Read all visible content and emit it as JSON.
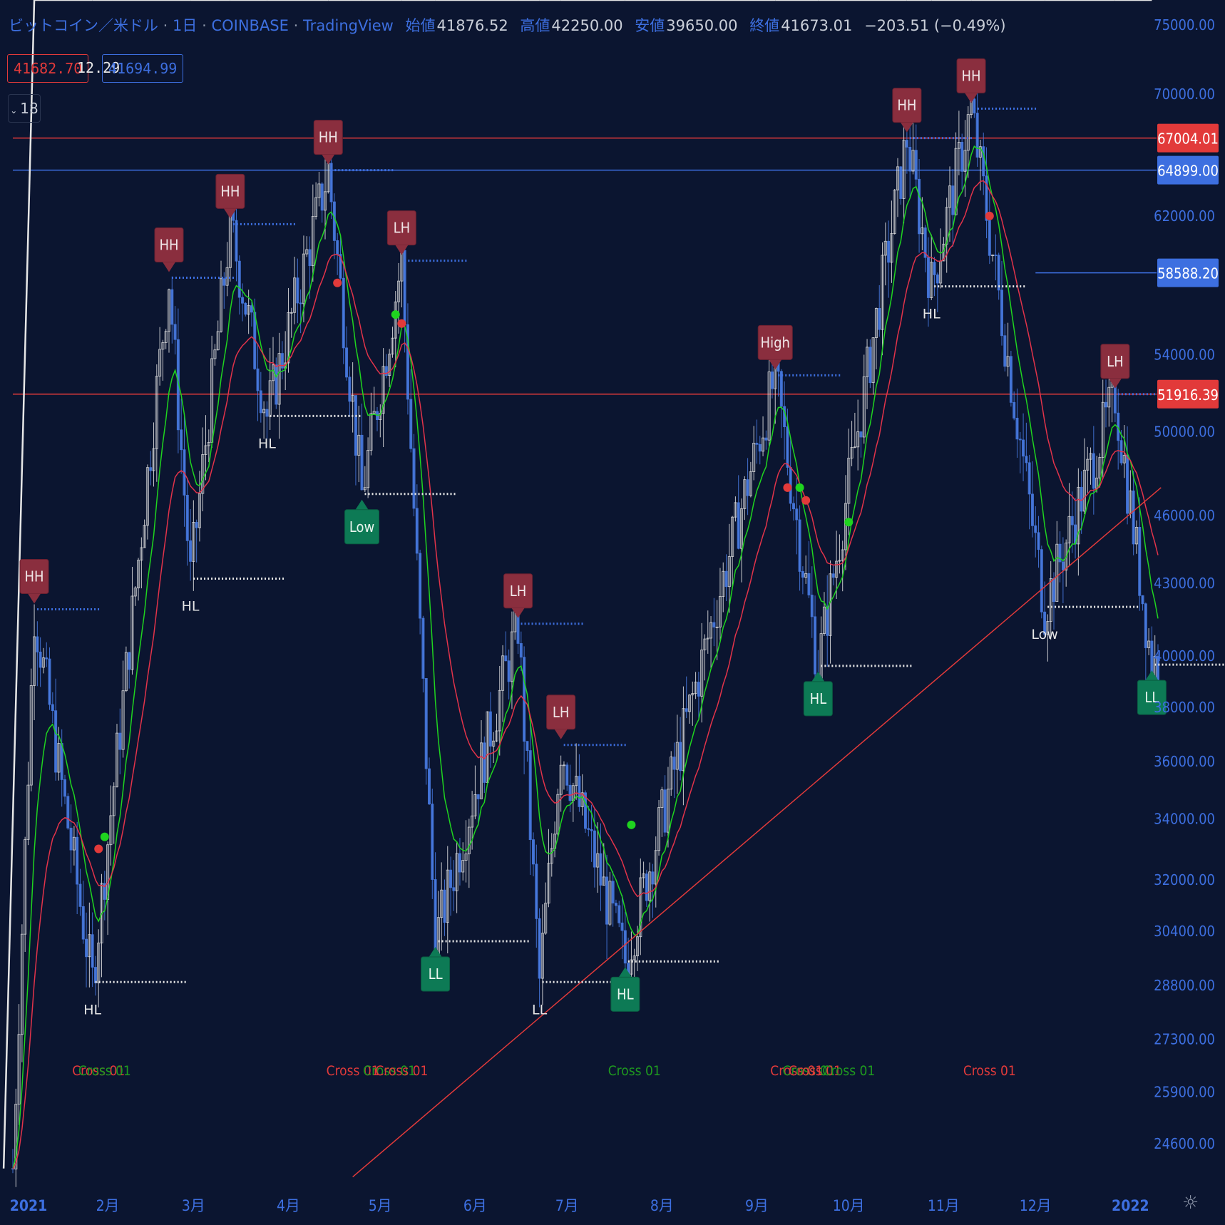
{
  "header": {
    "symbol": "ビットコイン／米ドル",
    "interval": "1日",
    "exchange": "COINBASE",
    "source": "TradingView",
    "open_label": "始値",
    "open": "41876.52",
    "high_label": "高値",
    "high": "42250.00",
    "low_label": "安値",
    "low": "39650.00",
    "close_label": "終値",
    "close": "41673.01",
    "change": "−203.51 (−0.49%)"
  },
  "indicator_values": {
    "red": "41682.70",
    "mid": "12.29",
    "blue": "41694.99"
  },
  "collapse_count": "18",
  "colors": {
    "background": "#0b1530",
    "blue": "#3d6fe0",
    "red": "#e23a3a",
    "green": "#1fd41f",
    "white": "#e6e6e6",
    "marker_red": "#8a2e3e",
    "marker_green": "#0d7a55"
  },
  "icons": {
    "settings": "gear-icon",
    "collapse": "chevron-down-icon"
  },
  "chart_data": {
    "type": "line",
    "axis": {
      "y_ticks": [
        75000,
        70000,
        62000,
        54000,
        50000,
        46000,
        43000,
        40000,
        38000,
        36000,
        34000,
        32000,
        30400,
        28800,
        27300,
        25900,
        24600
      ],
      "y_tick_labels": [
        "75000.00",
        "70000.00",
        "62000.00",
        "54000.00",
        "50000.00",
        "46000.00",
        "43000.00",
        "40000.00",
        "38000.00",
        "36000.00",
        "34000.00",
        "32000.00",
        "30400.00",
        "28800.00",
        "27300.00",
        "25900.00",
        "24600.00"
      ],
      "y_range": [
        23500,
        76000
      ],
      "x_range": [
        "2021-01-01",
        "2022-01-10"
      ],
      "x_ticks": [
        {
          "label": "2021",
          "date": "2021-01-01"
        },
        {
          "label": "2月",
          "date": "2021-02-01"
        },
        {
          "label": "3月",
          "date": "2021-03-01"
        },
        {
          "label": "4月",
          "date": "2021-04-01"
        },
        {
          "label": "5月",
          "date": "2021-05-01"
        },
        {
          "label": "6月",
          "date": "2021-06-01"
        },
        {
          "label": "7月",
          "date": "2021-07-01"
        },
        {
          "label": "8月",
          "date": "2021-08-01"
        },
        {
          "label": "9月",
          "date": "2021-09-01"
        },
        {
          "label": "10月",
          "date": "2021-10-01"
        },
        {
          "label": "11月",
          "date": "2021-11-01"
        },
        {
          "label": "12月",
          "date": "2021-12-01"
        },
        {
          "label": "2022",
          "date": "2022-01-01"
        }
      ]
    },
    "price_tags": [
      {
        "value": 67004.01,
        "label": "67004.01",
        "color": "#e23a3a",
        "hline": true,
        "hline_from": "2021-01-01"
      },
      {
        "value": 64899.0,
        "label": "64899.00",
        "color": "#3d6fe0",
        "hline": true,
        "hline_from": "2021-01-01"
      },
      {
        "value": 58588.2,
        "label": "58588.20",
        "color": "#3d6fe0",
        "hline": true,
        "hline_from": "2021-12-01"
      },
      {
        "value": 51916.39,
        "label": "51916.39",
        "color": "#e23a3a",
        "hline": true,
        "hline_from": "2021-01-01"
      }
    ],
    "pivots": [
      {
        "date": "2021-01-08",
        "value": 41900,
        "label": "HH",
        "kind": "high",
        "boxed": true
      },
      {
        "date": "2021-01-27",
        "value": 28900,
        "label": "HL",
        "kind": "low",
        "boxed": false
      },
      {
        "date": "2021-02-21",
        "value": 58300,
        "label": "HH",
        "kind": "high",
        "boxed": true
      },
      {
        "date": "2021-02-28",
        "value": 43200,
        "label": "HL",
        "kind": "low",
        "boxed": false
      },
      {
        "date": "2021-03-13",
        "value": 61500,
        "label": "HH",
        "kind": "high",
        "boxed": true
      },
      {
        "date": "2021-03-25",
        "value": 50800,
        "label": "HL",
        "kind": "low",
        "boxed": false
      },
      {
        "date": "2021-04-14",
        "value": 64899,
        "label": "HH",
        "kind": "high",
        "boxed": true
      },
      {
        "date": "2021-04-25",
        "value": 47000,
        "label": "Low",
        "kind": "low",
        "boxed": true
      },
      {
        "date": "2021-05-08",
        "value": 59300,
        "label": "LH",
        "kind": "high",
        "boxed": true
      },
      {
        "date": "2021-05-19",
        "value": 30100,
        "label": "LL",
        "kind": "low",
        "boxed": true
      },
      {
        "date": "2021-06-15",
        "value": 41300,
        "label": "LH",
        "kind": "high",
        "boxed": true
      },
      {
        "date": "2021-06-22",
        "value": 28900,
        "label": "LL",
        "kind": "low",
        "boxed": false
      },
      {
        "date": "2021-06-29",
        "value": 36600,
        "label": "LH",
        "kind": "high",
        "boxed": true
      },
      {
        "date": "2021-07-20",
        "value": 29500,
        "label": "HL",
        "kind": "low",
        "boxed": true
      },
      {
        "date": "2021-09-07",
        "value": 52900,
        "label": "High",
        "kind": "high",
        "boxed": true
      },
      {
        "date": "2021-09-21",
        "value": 39600,
        "label": "HL",
        "kind": "low",
        "boxed": true
      },
      {
        "date": "2021-10-20",
        "value": 67004,
        "label": "HH",
        "kind": "high",
        "boxed": true
      },
      {
        "date": "2021-10-28",
        "value": 57800,
        "label": "HL",
        "kind": "low",
        "boxed": false
      },
      {
        "date": "2021-11-10",
        "value": 69000,
        "label": "HH",
        "kind": "high",
        "boxed": true
      },
      {
        "date": "2021-12-04",
        "value": 42000,
        "label": "Low",
        "kind": "low",
        "boxed": false
      },
      {
        "date": "2021-12-27",
        "value": 51916,
        "label": "LH",
        "kind": "high",
        "boxed": true
      },
      {
        "date": "2022-01-08",
        "value": 39650,
        "label": "LL",
        "kind": "low",
        "boxed": true
      }
    ],
    "trendline": {
      "from": {
        "date": "2021-04-22",
        "value": 23800
      },
      "to": {
        "date": "2022-01-11",
        "value": 47300
      },
      "color": "#e23a3a"
    },
    "cross_labels": [
      {
        "date": "2021-01-29",
        "text": "Cross 01",
        "color": "#e23a3a"
      },
      {
        "date": "2021-01-31",
        "text": "Cross 01",
        "color": "#1f9a1f"
      },
      {
        "date": "2021-04-22",
        "text": "Cross 01",
        "color": "#e23a3a"
      },
      {
        "date": "2021-05-04",
        "text": "Cross 01",
        "color": "#1f9a1f"
      },
      {
        "date": "2021-05-08",
        "text": "Cross 01",
        "color": "#e23a3a"
      },
      {
        "date": "2021-07-23",
        "text": "Cross 01",
        "color": "#1f9a1f"
      },
      {
        "date": "2021-09-14",
        "text": "Cross 01",
        "color": "#e23a3a"
      },
      {
        "date": "2021-09-18",
        "text": "Cross 01",
        "color": "#1f9a1f"
      },
      {
        "date": "2021-09-20",
        "text": "Cross 01",
        "color": "#e23a3a"
      },
      {
        "date": "2021-10-01",
        "text": "Cross 01",
        "color": "#1f9a1f"
      },
      {
        "date": "2021-11-16",
        "text": "Cross 01",
        "color": "#e23a3a"
      }
    ],
    "cross_points": [
      {
        "date": "2021-01-29",
        "value": 33000,
        "color": "#e23a3a"
      },
      {
        "date": "2021-01-31",
        "value": 33400,
        "color": "#1fd41f"
      },
      {
        "date": "2021-04-17",
        "value": 58000,
        "color": "#e23a3a"
      },
      {
        "date": "2021-05-06",
        "value": 56200,
        "color": "#1fd41f"
      },
      {
        "date": "2021-05-08",
        "value": 55700,
        "color": "#e23a3a"
      },
      {
        "date": "2021-07-22",
        "value": 33800,
        "color": "#1fd41f"
      },
      {
        "date": "2021-09-11",
        "value": 47300,
        "color": "#e23a3a"
      },
      {
        "date": "2021-09-15",
        "value": 47300,
        "color": "#1fd41f"
      },
      {
        "date": "2021-09-17",
        "value": 46700,
        "color": "#e23a3a"
      },
      {
        "date": "2021-10-01",
        "value": 45700,
        "color": "#1fd41f"
      },
      {
        "date": "2021-11-16",
        "value": 62000,
        "color": "#e23a3a"
      }
    ]
  }
}
